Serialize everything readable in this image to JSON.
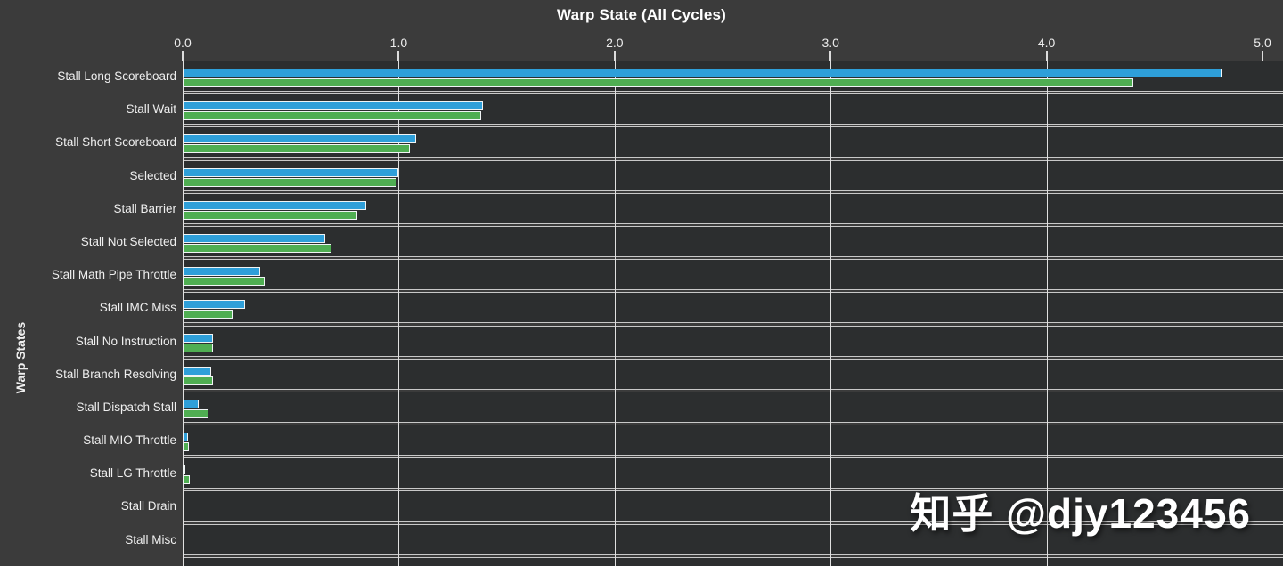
{
  "chart_data": {
    "type": "bar",
    "orientation": "horizontal",
    "title": "Warp State (All Cycles)",
    "axis_label": "Warp States",
    "xlabel": "",
    "xlim": [
      0,
      5
    ],
    "xticks": [
      "0.0",
      "1.0",
      "2.0",
      "3.0",
      "4.0",
      "5.0"
    ],
    "grid": true,
    "legend_position": "none",
    "categories": [
      "Stall Long Scoreboard",
      "Stall Wait",
      "Stall Short Scoreboard",
      "Selected",
      "Stall Barrier",
      "Stall Not Selected",
      "Stall Math Pipe Throttle",
      "Stall IMC Miss",
      "Stall No Instruction",
      "Stall Branch Resolving",
      "Stall Dispatch Stall",
      "Stall MIO Throttle",
      "Stall LG Throttle",
      "Stall Drain",
      "Stall Misc"
    ],
    "series": [
      {
        "name": "series-blue",
        "color": "#2E9FD9",
        "values": [
          4.81,
          1.39,
          1.08,
          1.0,
          0.85,
          0.66,
          0.36,
          0.29,
          0.14,
          0.13,
          0.075,
          0.025,
          0.012,
          0,
          0
        ]
      },
      {
        "name": "series-green",
        "color": "#4FAE52",
        "values": [
          4.4,
          1.38,
          1.05,
          0.99,
          0.81,
          0.69,
          0.38,
          0.23,
          0.14,
          0.14,
          0.12,
          0.03,
          0.035,
          0,
          0
        ]
      }
    ]
  },
  "watermark": "知乎 @djy123456",
  "colors": {
    "background": "#3B3B3B",
    "row_background": "#2C2E2F",
    "grid_line": "#E0E0E0",
    "row_border": "#C9C9C9",
    "bar_blue": "#2E9FD9",
    "bar_green": "#4FAE52",
    "text": "#F2F2F2"
  }
}
